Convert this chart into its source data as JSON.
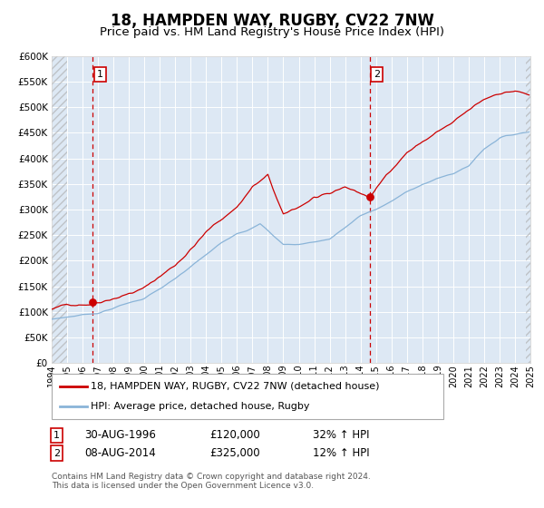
{
  "title": "18, HAMPDEN WAY, RUGBY, CV22 7NW",
  "subtitle": "Price paid vs. HM Land Registry's House Price Index (HPI)",
  "title_fontsize": 12,
  "subtitle_fontsize": 9.5,
  "x_start_year": 1994,
  "x_end_year": 2025,
  "y_min": 0,
  "y_max": 600000,
  "y_ticks": [
    0,
    50000,
    100000,
    150000,
    200000,
    250000,
    300000,
    350000,
    400000,
    450000,
    500000,
    550000,
    600000
  ],
  "hpi_color": "#8ab4d8",
  "price_color": "#cc0000",
  "marker_color": "#cc0000",
  "vline_color": "#cc0000",
  "background_color": "#dde8f4",
  "grid_color": "#ffffff",
  "sale1_year": 1996.667,
  "sale1_price": 120000,
  "sale1_label": "30-AUG-1996",
  "sale1_pct": "32%",
  "sale2_year": 2014.583,
  "sale2_price": 325000,
  "sale2_label": "08-AUG-2014",
  "sale2_pct": "12%",
  "legend_line1": "18, HAMPDEN WAY, RUGBY, CV22 7NW (detached house)",
  "legend_line2": "HPI: Average price, detached house, Rugby",
  "footer": "Contains HM Land Registry data © Crown copyright and database right 2024.\nThis data is licensed under the Open Government Licence v3.0."
}
